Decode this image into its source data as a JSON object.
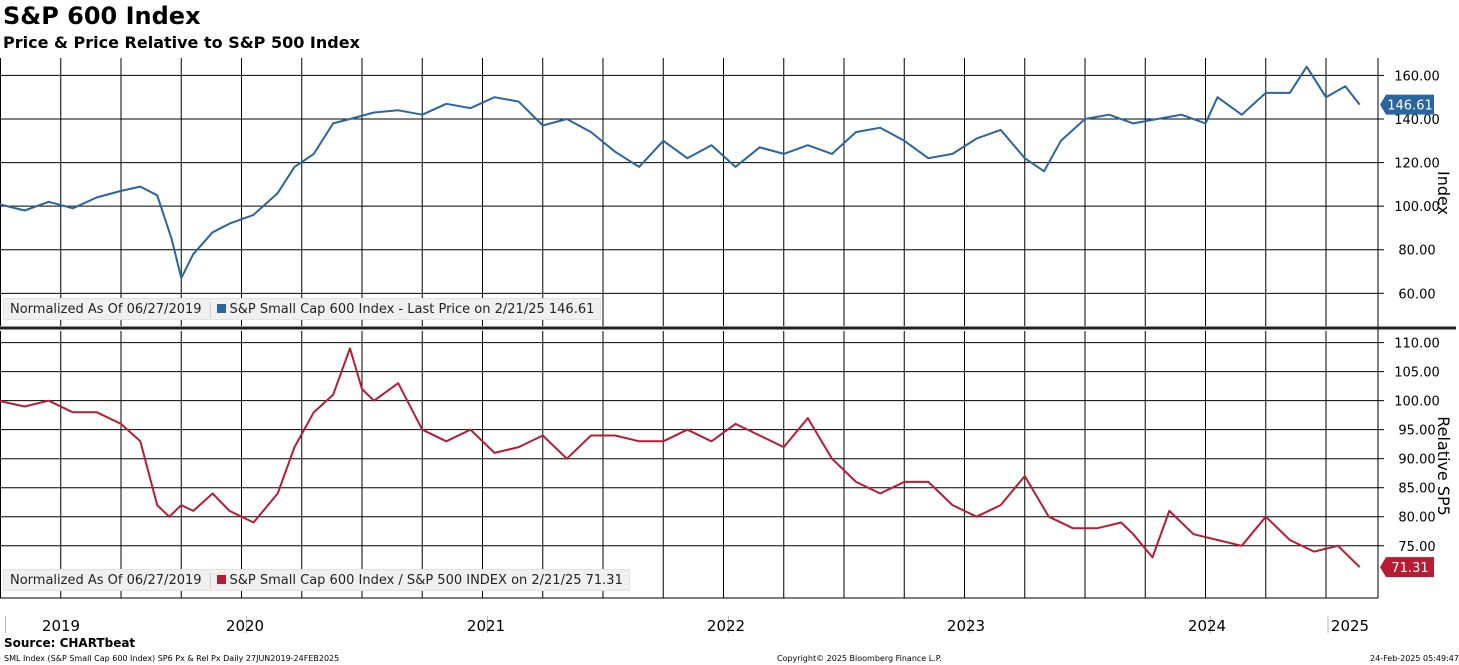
{
  "header": {
    "title": "S&P 600 Index",
    "subtitle": "Price & Price Relative to S&P 500 Index"
  },
  "footer": {
    "source": "Source: CHARTbeat",
    "description": "SML Index (S&P Small Cap 600 Index) SP6 Px & Rel Px  Daily 27JUN2019-24FEB2025",
    "copyright": "Copyright© 2025 Bloomberg Finance L.P.",
    "timestamp": "24-Feb-2025 05:49:47"
  },
  "colors": {
    "price": "#2a65a0",
    "relative": "#b81c32",
    "grid": "#000000"
  },
  "chart_data": [
    {
      "type": "line",
      "ylabel": "Index",
      "ylim": [
        45,
        168
      ],
      "y_ticks": [
        "60.00",
        "80.00",
        "100.00",
        "120.00",
        "140.00",
        "160.00"
      ],
      "legend": {
        "note": "Normalized As Of 06/27/2019",
        "series_label": "S&P Small Cap 600 Index - Last Price on 2/21/25 146.61"
      },
      "last_value_label": "146.61",
      "series": [
        {
          "name": "S&P Small Cap 600 Index",
          "x": [
            2019.49,
            2019.6,
            2019.7,
            2019.8,
            2019.9,
            2020.0,
            2020.08,
            2020.15,
            2020.21,
            2020.25,
            2020.3,
            2020.38,
            2020.45,
            2020.55,
            2020.65,
            2020.72,
            2020.8,
            2020.88,
            2020.95,
            2021.05,
            2021.15,
            2021.25,
            2021.35,
            2021.45,
            2021.55,
            2021.65,
            2021.75,
            2021.85,
            2021.95,
            2022.05,
            2022.15,
            2022.25,
            2022.35,
            2022.45,
            2022.55,
            2022.65,
            2022.75,
            2022.85,
            2022.95,
            2023.05,
            2023.15,
            2023.25,
            2023.35,
            2023.45,
            2023.55,
            2023.65,
            2023.75,
            2023.83,
            2023.9,
            2024.0,
            2024.1,
            2024.2,
            2024.3,
            2024.4,
            2024.5,
            2024.55,
            2024.65,
            2024.75,
            2024.85,
            2024.92,
            2025.0,
            2025.08,
            2025.14
          ],
          "values": [
            101,
            98,
            102,
            99,
            104,
            107,
            109,
            105,
            85,
            67,
            78,
            88,
            92,
            96,
            106,
            118,
            124,
            138,
            140,
            143,
            144,
            142,
            147,
            145,
            150,
            148,
            137,
            140,
            134,
            125,
            118,
            130,
            122,
            128,
            118,
            127,
            124,
            128,
            124,
            134,
            136,
            130,
            122,
            124,
            131,
            135,
            122,
            116,
            130,
            140,
            142,
            138,
            140,
            142,
            138,
            150,
            142,
            152,
            152,
            164,
            150,
            155,
            146.61
          ]
        }
      ]
    },
    {
      "type": "line",
      "ylabel": "Relative SP5",
      "ylim": [
        66,
        112
      ],
      "y_ticks": [
        "75.00",
        "80.00",
        "85.00",
        "90.00",
        "95.00",
        "100.00",
        "105.00",
        "110.00"
      ],
      "legend": {
        "note": "Normalized As Of 06/27/2019",
        "series_label": "S&P Small Cap 600 Index / S&P 500 INDEX on 2/21/25 71.31"
      },
      "last_value_label": "71.31",
      "series": [
        {
          "name": "S&P Small Cap 600 Index / S&P 500 INDEX",
          "x": [
            2019.49,
            2019.6,
            2019.7,
            2019.8,
            2019.9,
            2020.0,
            2020.08,
            2020.15,
            2020.2,
            2020.25,
            2020.3,
            2020.38,
            2020.45,
            2020.55,
            2020.65,
            2020.72,
            2020.8,
            2020.88,
            2020.95,
            2021.0,
            2021.05,
            2021.15,
            2021.25,
            2021.35,
            2021.45,
            2021.55,
            2021.65,
            2021.75,
            2021.85,
            2021.95,
            2022.05,
            2022.15,
            2022.25,
            2022.35,
            2022.45,
            2022.55,
            2022.65,
            2022.75,
            2022.85,
            2022.95,
            2023.05,
            2023.15,
            2023.25,
            2023.35,
            2023.45,
            2023.55,
            2023.65,
            2023.75,
            2023.85,
            2023.95,
            2024.05,
            2024.15,
            2024.2,
            2024.28,
            2024.35,
            2024.45,
            2024.55,
            2024.65,
            2024.75,
            2024.85,
            2024.95,
            2025.05,
            2025.14
          ],
          "values": [
            100,
            99,
            100,
            98,
            98,
            96,
            93,
            82,
            80,
            82,
            81,
            84,
            81,
            79,
            84,
            92,
            98,
            101,
            109,
            102,
            100,
            103,
            95,
            93,
            95,
            91,
            92,
            94,
            90,
            94,
            94,
            93,
            93,
            95,
            93,
            96,
            94,
            92,
            97,
            90,
            86,
            84,
            86,
            86,
            82,
            80,
            82,
            87,
            80,
            78,
            78,
            79,
            77,
            73,
            81,
            77,
            76,
            75,
            80,
            76,
            74,
            75,
            71.31
          ]
        }
      ]
    }
  ],
  "x_axis": {
    "ticks": [
      "2019",
      "2020",
      "2021",
      "2022",
      "2023",
      "2024",
      "2025"
    ]
  }
}
